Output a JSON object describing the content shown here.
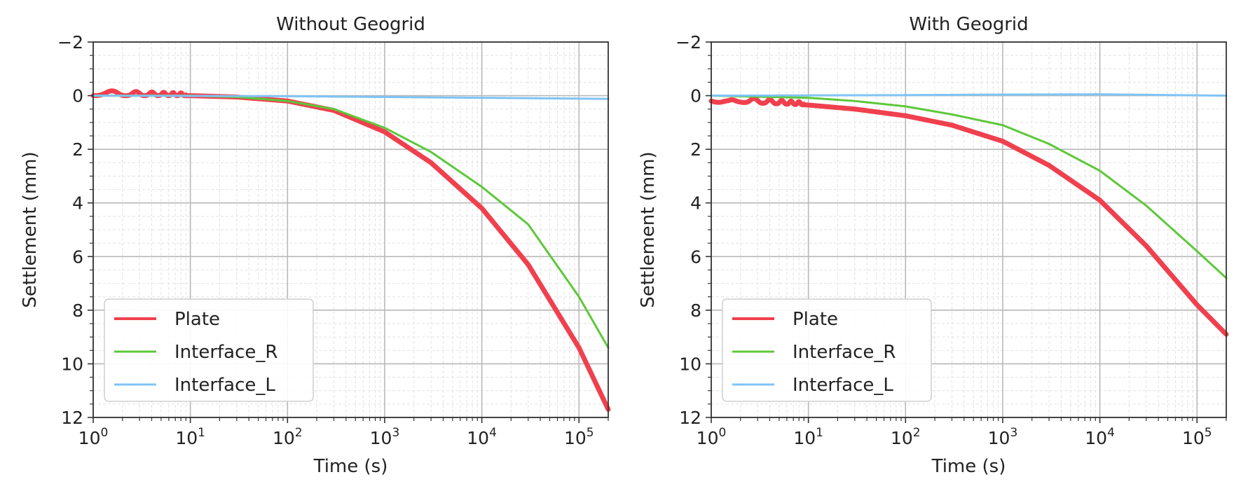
{
  "chart_data": [
    {
      "type": "line",
      "title": "Without Geogrid",
      "xlabel": "Time (s)",
      "ylabel": "Settlement (mm)",
      "xscale": "log",
      "xlim": [
        1,
        200000
      ],
      "ylim": [
        12,
        -2
      ],
      "yaxis_inverted": true,
      "xticks": [
        {
          "value": 1,
          "base": "10",
          "exp": "0"
        },
        {
          "value": 10,
          "base": "10",
          "exp": "1"
        },
        {
          "value": 100,
          "base": "10",
          "exp": "2"
        },
        {
          "value": 1000,
          "base": "10",
          "exp": "3"
        },
        {
          "value": 10000,
          "base": "10",
          "exp": "4"
        },
        {
          "value": 100000,
          "base": "10",
          "exp": "5"
        }
      ],
      "yticks": [
        {
          "value": -2,
          "label": "−2"
        },
        {
          "value": 0,
          "label": "0"
        },
        {
          "value": 2,
          "label": "2"
        },
        {
          "value": 4,
          "label": "4"
        },
        {
          "value": 6,
          "label": "6"
        },
        {
          "value": 8,
          "label": "8"
        },
        {
          "value": 10,
          "label": "10"
        },
        {
          "value": 12,
          "label": "12"
        }
      ],
      "grid": "major and minor",
      "legend_position": "lower-left",
      "series": [
        {
          "name": "Plate",
          "color": "#f0404e",
          "width": 7,
          "oscillation": {
            "until": 9,
            "amplitude": 0.2
          },
          "x": [
            1,
            10,
            30,
            100,
            300,
            1000,
            3000,
            10000,
            30000,
            100000,
            200000
          ],
          "y": [
            0,
            0,
            0.05,
            0.2,
            0.55,
            1.35,
            2.5,
            4.2,
            6.3,
            9.4,
            11.7
          ]
        },
        {
          "name": "Interface_R",
          "color": "#5dc83a",
          "width": 3,
          "oscillation": null,
          "x": [
            1,
            10,
            30,
            100,
            300,
            1000,
            3000,
            10000,
            30000,
            100000,
            200000
          ],
          "y": [
            0,
            0,
            0.05,
            0.2,
            0.5,
            1.2,
            2.1,
            3.4,
            4.8,
            7.5,
            9.4
          ]
        },
        {
          "name": "Interface_L",
          "color": "#7fc4f5",
          "width": 3,
          "oscillation": null,
          "x": [
            1,
            100,
            1000,
            10000,
            200000
          ],
          "y": [
            0,
            0.02,
            0.05,
            0.08,
            0.12
          ]
        }
      ]
    },
    {
      "type": "line",
      "title": "With Geogrid",
      "xlabel": "Time (s)",
      "ylabel": "Settlement (mm)",
      "xscale": "log",
      "xlim": [
        1,
        200000
      ],
      "ylim": [
        12,
        -2
      ],
      "yaxis_inverted": true,
      "xticks": [
        {
          "value": 1,
          "base": "10",
          "exp": "0"
        },
        {
          "value": 10,
          "base": "10",
          "exp": "1"
        },
        {
          "value": 100,
          "base": "10",
          "exp": "2"
        },
        {
          "value": 1000,
          "base": "10",
          "exp": "3"
        },
        {
          "value": 10000,
          "base": "10",
          "exp": "4"
        },
        {
          "value": 100000,
          "base": "10",
          "exp": "5"
        }
      ],
      "yticks": [
        {
          "value": -2,
          "label": "−2"
        },
        {
          "value": 0,
          "label": "0"
        },
        {
          "value": 2,
          "label": "2"
        },
        {
          "value": 4,
          "label": "4"
        },
        {
          "value": 6,
          "label": "6"
        },
        {
          "value": 8,
          "label": "8"
        },
        {
          "value": 10,
          "label": "10"
        },
        {
          "value": 12,
          "label": "12"
        }
      ],
      "grid": "major and minor",
      "legend_position": "lower-left",
      "series": [
        {
          "name": "Plate",
          "color": "#f0404e",
          "width": 7,
          "oscillation": {
            "until": 9,
            "amplitude": 0.22
          },
          "x": [
            1,
            1.5,
            2,
            10,
            30,
            100,
            300,
            1000,
            3000,
            10000,
            30000,
            100000,
            200000
          ],
          "y": [
            0.2,
            0.38,
            0.25,
            0.35,
            0.5,
            0.75,
            1.1,
            1.7,
            2.6,
            3.9,
            5.6,
            7.8,
            8.9
          ]
        },
        {
          "name": "Interface_R",
          "color": "#5dc83a",
          "width": 3,
          "oscillation": null,
          "x": [
            1,
            10,
            30,
            100,
            300,
            1000,
            3000,
            10000,
            30000,
            100000,
            200000
          ],
          "y": [
            0,
            0.08,
            0.2,
            0.4,
            0.7,
            1.1,
            1.8,
            2.8,
            4.1,
            5.8,
            6.8
          ]
        },
        {
          "name": "Interface_L",
          "color": "#7fc4f5",
          "width": 3,
          "oscillation": null,
          "x": [
            1,
            100,
            1000,
            10000,
            200000
          ],
          "y": [
            0,
            -0.02,
            -0.04,
            -0.05,
            0
          ]
        }
      ]
    }
  ]
}
